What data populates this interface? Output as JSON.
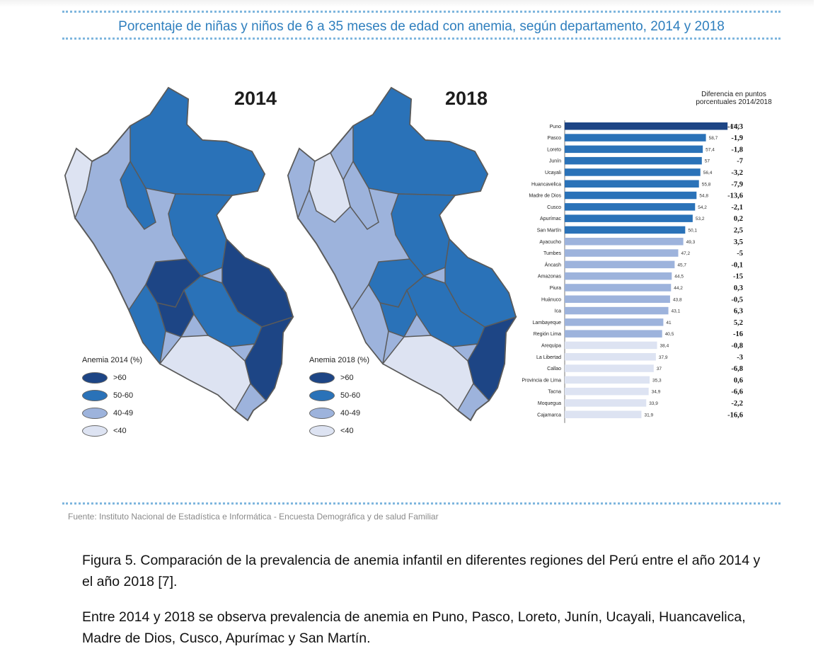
{
  "title": "Porcentaje de niñas y niños de 6 a 35 meses de edad con anemia, según departamento, 2014 y 2018",
  "maps": [
    {
      "year": "2014",
      "legend_title": "Anemia 2014 (%)"
    },
    {
      "year": "2018",
      "legend_title": "Anemia 2018 (%)"
    }
  ],
  "legend_items": [
    {
      "label": ">60",
      "color": "#1d4585"
    },
    {
      "label": "50-60",
      "color": "#2a72b8"
    },
    {
      "label": "40-49",
      "color": "#9db3dc"
    },
    {
      "label": "<40",
      "color": "#dde3f2"
    }
  ],
  "chart_data": {
    "type": "bar",
    "orientation": "horizontal",
    "diff_header": "Diferencia en puntos porcentuales 2014/2018",
    "categories": [
      "Puno",
      "Pasco",
      "Loreto",
      "Junín",
      "Ucayali",
      "Huancavelica",
      "Madre de Dios",
      "Cusco",
      "Apurímac",
      "San Martín",
      "Ayacucho",
      "Tumbes",
      "Áncash",
      "Amazonas",
      "Piura",
      "Huánuco",
      "Ica",
      "Lambayeque",
      "Región Lima",
      "Arequipa",
      "La Libertad",
      "Callao",
      "Provincia de Lima",
      "Tacna",
      "Moquegua",
      "Cajamarca"
    ],
    "values": [
      67.7,
      58.7,
      57.4,
      57,
      56.4,
      55.8,
      54.8,
      54.2,
      53.2,
      50.1,
      49.3,
      47.2,
      45.7,
      44.5,
      44.2,
      43.8,
      43.1,
      41,
      40.5,
      38.4,
      37.9,
      37,
      35.3,
      34.9,
      33.9,
      31.9
    ],
    "value_labels": [
      "67,7",
      "58,7",
      "57,4",
      "57",
      "56,4",
      "55,8",
      "54,8",
      "54,2",
      "53,2",
      "50,1",
      "49,3",
      "47,2",
      "45,7",
      "44,5",
      "44,2",
      "43,8",
      "43,1",
      "41",
      "40,5",
      "38,4",
      "37,9",
      "37",
      "35,3",
      "34,9",
      "33,9",
      "31,9"
    ],
    "differences": [
      "-14,3",
      "-1,9",
      "-1,8",
      "-7",
      "-3,2",
      "-7,9",
      "-13,6",
      "-2,1",
      "0,2",
      "2,5",
      "3,5",
      "-5",
      "-0,1",
      "-15",
      "0,3",
      "-0,5",
      "6,3",
      "5,2",
      "-16",
      "-0,8",
      "-3",
      "-6,8",
      "0,6",
      "-6,6",
      "-2,2",
      "-16,6"
    ],
    "colors": [
      "#1d4585",
      "#2a72b8",
      "#9db3dc",
      "#dde3f2"
    ]
  },
  "source": "Fuente: Instituto Nacional de Estadística e Informática - Encuesta Demográfica y de salud Familiar",
  "caption": {
    "figure": "Figura 5. Comparación de la prevalencia de anemia infantil en diferentes regiones del Perú entre el año 2014 y el año 2018 [7].",
    "note": "Entre 2014 y 2018 se observa prevalencia de anemia en Puno, Pasco, Loreto, Junín, Ucayali, Huancavelica, Madre de Dios, Cusco, Apurímac y San Martín."
  }
}
